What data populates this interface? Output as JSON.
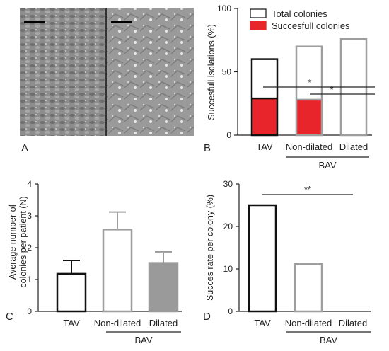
{
  "panel_labels": {
    "A": "A",
    "B": "B",
    "C": "C",
    "D": "D"
  },
  "group_label": "BAV",
  "colors": {
    "tav": "#111111",
    "bav_outline": "#9e9e9e",
    "success_fill": "#e8252b",
    "dilated_fill": "#9a9a9a"
  },
  "chart_data": [
    {
      "id": "B",
      "type": "bar",
      "ylabel": "Succesfull isolations (%)",
      "ylim": [
        0,
        100
      ],
      "yticks": [
        0,
        50,
        100
      ],
      "categories": [
        "TAV",
        "Non-dilated",
        "Dilated"
      ],
      "series": [
        {
          "name": "Total colonies",
          "values": [
            60,
            70,
            76
          ]
        },
        {
          "name": "Succesfull colonies",
          "values": [
            29,
            28,
            0
          ]
        }
      ],
      "legend": "top",
      "annotations": [
        {
          "from": "TAV",
          "to": "Dilated",
          "label": "*"
        },
        {
          "from": "Non-dilated",
          "to": "Dilated",
          "label": "*"
        }
      ]
    },
    {
      "id": "C",
      "type": "bar",
      "ylabel_lines": [
        "Average number of",
        "colonies per patient (N)"
      ],
      "ylim": [
        0,
        4
      ],
      "yticks": [
        0,
        1,
        2,
        3,
        4
      ],
      "categories": [
        "TAV",
        "Non-dilated",
        "Dilated"
      ],
      "values": [
        1.18,
        2.57,
        1.52
      ],
      "errors": [
        0.42,
        0.55,
        0.35
      ]
    },
    {
      "id": "D",
      "type": "bar",
      "ylabel": "Succes rate per colony (%)",
      "ylim": [
        0,
        30
      ],
      "yticks": [
        0,
        10,
        20,
        30
      ],
      "categories": [
        "TAV",
        "Non-dilated",
        "Dilated"
      ],
      "values": [
        25,
        11.2,
        0
      ],
      "annotations": [
        {
          "from": "TAV",
          "to": "Dilated",
          "label": "**"
        }
      ]
    }
  ]
}
